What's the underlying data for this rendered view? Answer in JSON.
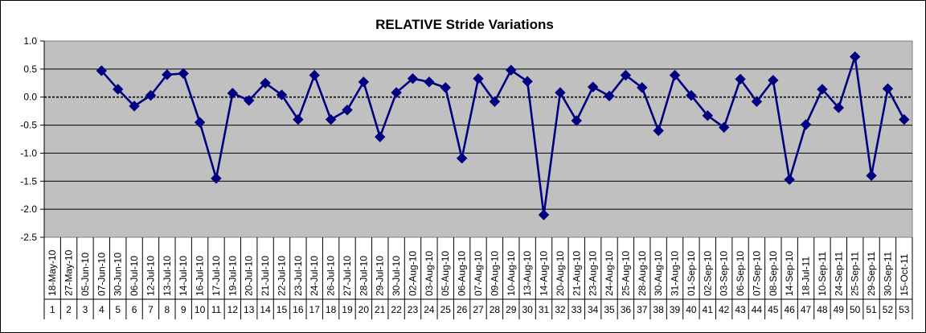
{
  "chart_data": {
    "type": "line",
    "title": "RELATIVE Stride Variations",
    "xlabel": "",
    "ylabel": "",
    "ylim": [
      -2.5,
      1.0
    ],
    "yticks": [
      "1.0",
      "0.5",
      "0.0",
      "-0.5",
      "-1.0",
      "-1.5",
      "-2.0",
      "-2.5"
    ],
    "ytick_values": [
      1.0,
      0.5,
      0.0,
      -0.5,
      -1.0,
      -1.5,
      -2.0,
      -2.5
    ],
    "grid": true,
    "legend": "none",
    "colors": {
      "series": "#000080",
      "plot_bg": "#c0c0c0",
      "zero_line": "#000000"
    },
    "categories": [
      "18-May-10",
      "27-May-10",
      "05-Jun-10",
      "07-Jun-10",
      "30-Jun-10",
      "06-Jul-10",
      "12-Jul-10",
      "13-Jul-10",
      "14-Jul-10",
      "16-Jul-10",
      "17-Jul-10",
      "19-Jul-10",
      "20-Jul-10",
      "21-Jul-10",
      "22-Jul-10",
      "23-Jul-10",
      "24-Jul-10",
      "26-Jul-10",
      "27-Jul-10",
      "28-Jul-10",
      "29-Jul-10",
      "30-Jul-10",
      "02-Aug-10",
      "03-Aug-10",
      "05-Aug-10",
      "06-Aug-10",
      "07-Aug-10",
      "09-Aug-10",
      "10-Aug-10",
      "13-Aug-10",
      "14-Aug-10",
      "20-Aug-10",
      "21-Aug-10",
      "23-Aug-10",
      "24-Aug-10",
      "25-Aug-10",
      "28-Aug-10",
      "30-Aug-10",
      "31-Aug-10",
      "01-Sep-10",
      "02-Sep-10",
      "03-Sep-10",
      "06-Sep-10",
      "07-Sep-10",
      "08-Sep-10",
      "14-Sep-10",
      "18-Jul-11",
      "10-Sep-11",
      "24-Sep-11",
      "25-Sep-11",
      "29-Sep-11",
      "30-Sep-11",
      "15-Oct-11"
    ],
    "indices": [
      "1",
      "2",
      "3",
      "4",
      "5",
      "6",
      "7",
      "8",
      "9",
      "10",
      "11",
      "12",
      "13",
      "14",
      "15",
      "16",
      "17",
      "18",
      "19",
      "20",
      "21",
      "22",
      "23",
      "24",
      "25",
      "26",
      "27",
      "28",
      "29",
      "30",
      "31",
      "32",
      "33",
      "34",
      "35",
      "36",
      "37",
      "38",
      "39",
      "40",
      "41",
      "42",
      "43",
      "44",
      "45",
      "46",
      "47",
      "48",
      "49",
      "50",
      "51",
      "52",
      "53"
    ],
    "index_counts": [
      1,
      1,
      1,
      1,
      1,
      1,
      1,
      1,
      1,
      1,
      1,
      1,
      1,
      1,
      1,
      1,
      1,
      1,
      1,
      1,
      1,
      1,
      1,
      1,
      1,
      1,
      1,
      1,
      1,
      1,
      1,
      1,
      1,
      1,
      1,
      1,
      1,
      1,
      1,
      1,
      1,
      1,
      1,
      1,
      1,
      1,
      1,
      1,
      1,
      1,
      1,
      1,
      1
    ],
    "series": [
      {
        "values": [
          null,
          null,
          null,
          0.47,
          0.14,
          -0.16,
          0.03,
          0.4,
          0.42,
          -0.45,
          -1.45,
          0.07,
          -0.06,
          0.25,
          0.04,
          -0.4,
          0.39,
          -0.4,
          -0.23,
          0.27,
          -0.71,
          0.08,
          0.33,
          0.27,
          0.17,
          -1.09,
          0.33,
          -0.08,
          0.48,
          0.28,
          -2.1,
          0.08,
          -0.42,
          0.18,
          0.02,
          0.39,
          0.17,
          -0.6,
          0.39,
          0.03,
          -0.33,
          -0.54,
          0.32,
          -0.08,
          0.3,
          -1.47,
          -0.49,
          0.14,
          -0.19,
          0.72,
          -1.4,
          0.15,
          -0.4
        ]
      }
    ]
  }
}
